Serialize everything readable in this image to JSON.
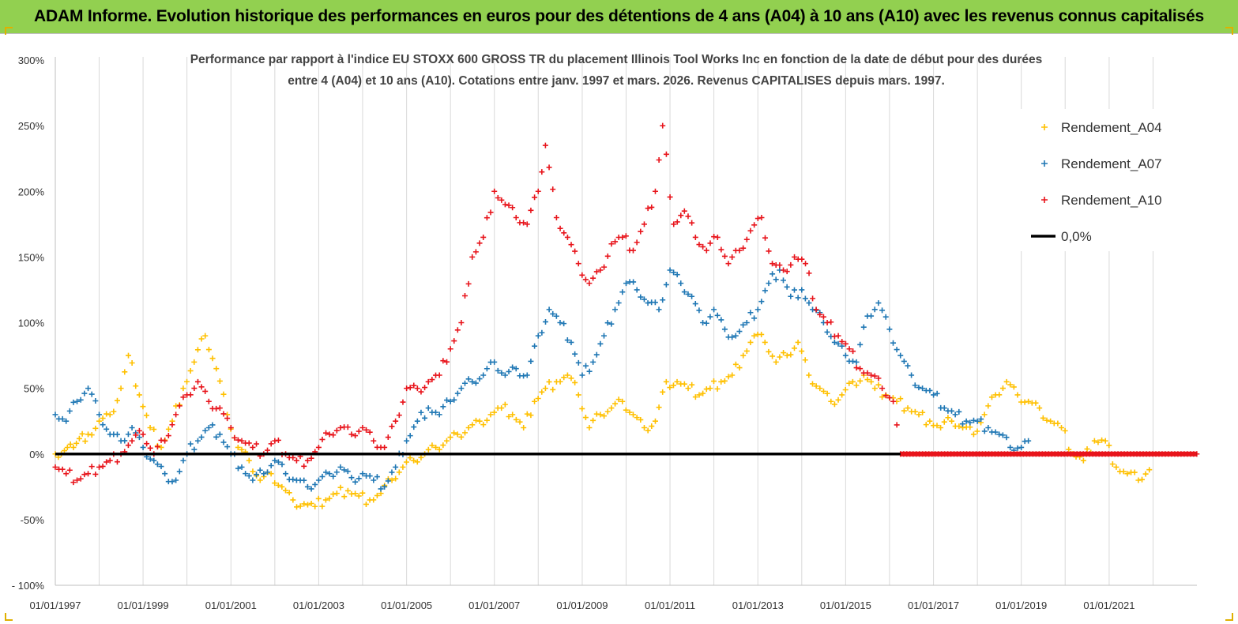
{
  "banner": {
    "title": "ADAM Informe. Evolution historique des performances en euros pour des détentions de 4 ans (A04) à 10 ans (A10) avec les revenus connus capitalisés"
  },
  "chart_data": {
    "type": "scatter",
    "title_lines": [
      "Performance par rapport à l'indice EU STOXX 600 GROSS TR  du placement Illinois Tool Works Inc en fonction de la date de début pour des durées",
      "entre 4 (A04) et 10 ans (A10). Cotations entre janv. 1997 et mars. 2026. Revenus CAPITALISES depuis mars. 1997."
    ],
    "xlabel": "",
    "ylabel": "",
    "x_range": [
      "1997-01-01",
      "2023-01-01"
    ],
    "x_ticks": [
      "01/01/1997",
      "01/01/1999",
      "01/01/2001",
      "01/01/2003",
      "01/01/2005",
      "01/01/2007",
      "01/01/2009",
      "01/01/2011",
      "01/01/2013",
      "01/01/2015",
      "01/01/2017",
      "01/01/2019",
      "01/01/2021"
    ],
    "y_range": [
      -100,
      300
    ],
    "y_ticks": [
      "- 100%",
      "-50%",
      "0%",
      "50%",
      "100%",
      "150%",
      "200%",
      "250%",
      "300%"
    ],
    "grid": "vertical",
    "legend_position": "top-right",
    "series": [
      {
        "name": "Rendement_A04",
        "color": "#ffc000",
        "marker": "plus",
        "points": [
          [
            "1997-01-01",
            0
          ],
          [
            "1997-06-01",
            5
          ],
          [
            "1997-10-01",
            15
          ],
          [
            "1998-01-01",
            25
          ],
          [
            "1998-04-01",
            30
          ],
          [
            "1998-07-01",
            50
          ],
          [
            "1998-09-01",
            75
          ],
          [
            "1998-12-01",
            45
          ],
          [
            "1999-03-01",
            20
          ],
          [
            "1999-06-01",
            5
          ],
          [
            "1999-09-01",
            25
          ],
          [
            "1999-12-01",
            50
          ],
          [
            "2000-03-01",
            70
          ],
          [
            "2000-06-01",
            90
          ],
          [
            "2000-09-01",
            65
          ],
          [
            "2000-12-01",
            30
          ],
          [
            "2001-03-01",
            5
          ],
          [
            "2001-06-01",
            -5
          ],
          [
            "2001-09-01",
            -20
          ],
          [
            "2001-12-01",
            -15
          ],
          [
            "2002-03-01",
            -25
          ],
          [
            "2002-06-01",
            -35
          ],
          [
            "2002-09-01",
            -38
          ],
          [
            "2002-12-01",
            -40
          ],
          [
            "2003-03-01",
            -35
          ],
          [
            "2003-06-01",
            -30
          ],
          [
            "2003-09-01",
            -28
          ],
          [
            "2003-12-01",
            -32
          ],
          [
            "2004-03-01",
            -35
          ],
          [
            "2004-06-01",
            -30
          ],
          [
            "2004-09-01",
            -20
          ],
          [
            "2004-12-01",
            -10
          ],
          [
            "2005-03-01",
            -5
          ],
          [
            "2005-06-01",
            0
          ],
          [
            "2005-09-01",
            5
          ],
          [
            "2005-12-01",
            10
          ],
          [
            "2006-03-01",
            15
          ],
          [
            "2006-06-01",
            20
          ],
          [
            "2006-09-01",
            25
          ],
          [
            "2006-12-01",
            30
          ],
          [
            "2007-03-01",
            35
          ],
          [
            "2007-06-01",
            30
          ],
          [
            "2007-09-01",
            20
          ],
          [
            "2007-12-01",
            40
          ],
          [
            "2008-03-01",
            50
          ],
          [
            "2008-06-01",
            55
          ],
          [
            "2008-09-01",
            60
          ],
          [
            "2008-12-01",
            45
          ],
          [
            "2009-03-01",
            20
          ],
          [
            "2009-06-01",
            30
          ],
          [
            "2009-09-01",
            35
          ],
          [
            "2009-12-01",
            40
          ],
          [
            "2010-03-01",
            30
          ],
          [
            "2010-06-01",
            20
          ],
          [
            "2010-09-01",
            25
          ],
          [
            "2010-12-01",
            55
          ],
          [
            "2011-03-01",
            55
          ],
          [
            "2011-06-01",
            50
          ],
          [
            "2011-09-01",
            45
          ],
          [
            "2011-12-01",
            50
          ],
          [
            "2012-03-01",
            55
          ],
          [
            "2012-06-01",
            60
          ],
          [
            "2012-09-01",
            75
          ],
          [
            "2012-12-01",
            90
          ],
          [
            "2013-03-01",
            85
          ],
          [
            "2013-06-01",
            70
          ],
          [
            "2013-09-01",
            75
          ],
          [
            "2013-12-01",
            85
          ],
          [
            "2014-03-01",
            60
          ],
          [
            "2014-06-01",
            50
          ],
          [
            "2014-09-01",
            40
          ],
          [
            "2014-12-01",
            45
          ],
          [
            "2015-03-01",
            55
          ],
          [
            "2015-06-01",
            60
          ],
          [
            "2015-09-01",
            50
          ],
          [
            "2015-12-01",
            45
          ],
          [
            "2016-03-01",
            40
          ],
          [
            "2016-06-01",
            35
          ],
          [
            "2016-09-01",
            30
          ],
          [
            "2016-12-01",
            25
          ],
          [
            "2017-03-01",
            20
          ],
          [
            "2017-06-01",
            25
          ],
          [
            "2017-09-01",
            20
          ],
          [
            "2017-12-01",
            15
          ],
          [
            "2018-03-01",
            30
          ],
          [
            "2018-06-01",
            45
          ],
          [
            "2018-09-01",
            55
          ],
          [
            "2018-12-01",
            45
          ],
          [
            "2019-03-01",
            40
          ],
          [
            "2019-06-01",
            35
          ],
          [
            "2019-09-01",
            25
          ],
          [
            "2019-12-01",
            20
          ],
          [
            "2020-03-01",
            0
          ],
          [
            "2020-06-01",
            -5
          ],
          [
            "2020-09-01",
            10
          ],
          [
            "2020-12-01",
            10
          ],
          [
            "2021-03-01",
            -10
          ],
          [
            "2021-06-01",
            -15
          ],
          [
            "2021-09-01",
            -20
          ],
          [
            "2021-12-01",
            -12
          ]
        ]
      },
      {
        "name": "Rendement_A07",
        "color": "#1f77b4",
        "marker": "plus",
        "points": [
          [
            "1997-01-01",
            30
          ],
          [
            "1997-04-01",
            25
          ],
          [
            "1997-07-01",
            40
          ],
          [
            "1997-10-01",
            50
          ],
          [
            "1998-01-01",
            30
          ],
          [
            "1998-04-01",
            15
          ],
          [
            "1998-07-01",
            10
          ],
          [
            "1998-10-01",
            20
          ],
          [
            "1999-01-01",
            5
          ],
          [
            "1999-04-01",
            -5
          ],
          [
            "1999-07-01",
            -15
          ],
          [
            "1999-10-01",
            -20
          ],
          [
            "2000-01-01",
            0
          ],
          [
            "2000-04-01",
            10
          ],
          [
            "2000-07-01",
            20
          ],
          [
            "2000-10-01",
            15
          ],
          [
            "2001-01-01",
            0
          ],
          [
            "2001-04-01",
            -10
          ],
          [
            "2001-07-01",
            -20
          ],
          [
            "2001-10-01",
            -15
          ],
          [
            "2002-01-01",
            -5
          ],
          [
            "2002-04-01",
            -15
          ],
          [
            "2002-07-01",
            -20
          ],
          [
            "2002-10-01",
            -25
          ],
          [
            "2003-01-01",
            -20
          ],
          [
            "2003-04-01",
            -15
          ],
          [
            "2003-07-01",
            -10
          ],
          [
            "2003-10-01",
            -18
          ],
          [
            "2004-01-01",
            -15
          ],
          [
            "2004-04-01",
            -20
          ],
          [
            "2004-07-01",
            -25
          ],
          [
            "2004-10-01",
            -10
          ],
          [
            "2005-01-01",
            10
          ],
          [
            "2005-04-01",
            25
          ],
          [
            "2005-07-01",
            35
          ],
          [
            "2005-10-01",
            30
          ],
          [
            "2006-01-01",
            40
          ],
          [
            "2006-04-01",
            50
          ],
          [
            "2006-07-01",
            55
          ],
          [
            "2006-10-01",
            60
          ],
          [
            "2007-01-01",
            70
          ],
          [
            "2007-04-01",
            60
          ],
          [
            "2007-07-01",
            65
          ],
          [
            "2007-10-01",
            60
          ],
          [
            "2008-01-01",
            90
          ],
          [
            "2008-04-01",
            110
          ],
          [
            "2008-07-01",
            100
          ],
          [
            "2008-10-01",
            85
          ],
          [
            "2009-01-01",
            60
          ],
          [
            "2009-04-01",
            70
          ],
          [
            "2009-07-01",
            90
          ],
          [
            "2009-10-01",
            110
          ],
          [
            "2010-01-01",
            130
          ],
          [
            "2010-04-01",
            125
          ],
          [
            "2010-07-01",
            115
          ],
          [
            "2010-10-01",
            110
          ],
          [
            "2011-01-01",
            140
          ],
          [
            "2011-04-01",
            130
          ],
          [
            "2011-07-01",
            120
          ],
          [
            "2011-10-01",
            100
          ],
          [
            "2012-01-01",
            110
          ],
          [
            "2012-04-01",
            95
          ],
          [
            "2012-07-01",
            90
          ],
          [
            "2012-10-01",
            100
          ],
          [
            "2013-01-01",
            110
          ],
          [
            "2013-04-01",
            130
          ],
          [
            "2013-07-01",
            140
          ],
          [
            "2013-10-01",
            120
          ],
          [
            "2014-01-01",
            125
          ],
          [
            "2014-04-01",
            110
          ],
          [
            "2014-07-01",
            100
          ],
          [
            "2014-10-01",
            85
          ],
          [
            "2015-01-01",
            75
          ],
          [
            "2015-04-01",
            70
          ],
          [
            "2015-07-01",
            105
          ],
          [
            "2015-10-01",
            115
          ],
          [
            "2016-01-01",
            95
          ],
          [
            "2016-04-01",
            75
          ],
          [
            "2016-07-01",
            60
          ],
          [
            "2016-10-01",
            50
          ],
          [
            "2017-01-01",
            45
          ],
          [
            "2017-04-01",
            35
          ],
          [
            "2017-07-01",
            30
          ],
          [
            "2017-10-01",
            25
          ],
          [
            "2018-01-01",
            25
          ],
          [
            "2018-04-01",
            20
          ],
          [
            "2018-07-01",
            15
          ],
          [
            "2018-10-01",
            5
          ],
          [
            "2019-01-01",
            5
          ],
          [
            "2019-03-01",
            10
          ]
        ]
      },
      {
        "name": "Rendement_A10",
        "color": "#e8141b",
        "marker": "plus",
        "points": [
          [
            "1997-01-01",
            -10
          ],
          [
            "1997-04-01",
            -15
          ],
          [
            "1997-07-01",
            -20
          ],
          [
            "1997-10-01",
            -15
          ],
          [
            "1998-01-01",
            -10
          ],
          [
            "1998-04-01",
            -5
          ],
          [
            "1998-07-01",
            0
          ],
          [
            "1998-10-01",
            10
          ],
          [
            "1999-01-01",
            15
          ],
          [
            "1999-04-01",
            0
          ],
          [
            "1999-07-01",
            10
          ],
          [
            "1999-10-01",
            30
          ],
          [
            "2000-01-01",
            45
          ],
          [
            "2000-04-01",
            55
          ],
          [
            "2000-07-01",
            40
          ],
          [
            "2000-10-01",
            35
          ],
          [
            "2001-01-01",
            20
          ],
          [
            "2001-04-01",
            10
          ],
          [
            "2001-07-01",
            5
          ],
          [
            "2001-10-01",
            0
          ],
          [
            "2002-01-01",
            10
          ],
          [
            "2002-04-01",
            0
          ],
          [
            "2002-07-01",
            -5
          ],
          [
            "2002-10-01",
            -5
          ],
          [
            "2003-01-01",
            5
          ],
          [
            "2003-04-01",
            15
          ],
          [
            "2003-07-01",
            20
          ],
          [
            "2003-10-01",
            15
          ],
          [
            "2004-01-01",
            20
          ],
          [
            "2004-04-01",
            10
          ],
          [
            "2004-07-01",
            5
          ],
          [
            "2004-10-01",
            25
          ],
          [
            "2005-01-01",
            50
          ],
          [
            "2005-04-01",
            50
          ],
          [
            "2005-07-01",
            55
          ],
          [
            "2005-10-01",
            60
          ],
          [
            "2006-01-01",
            80
          ],
          [
            "2006-04-01",
            100
          ],
          [
            "2006-07-01",
            150
          ],
          [
            "2006-10-01",
            165
          ],
          [
            "2007-01-01",
            200
          ],
          [
            "2007-04-01",
            190
          ],
          [
            "2007-07-01",
            180
          ],
          [
            "2007-10-01",
            175
          ],
          [
            "2008-01-01",
            200
          ],
          [
            "2008-03-01",
            235
          ],
          [
            "2008-06-01",
            180
          ],
          [
            "2008-09-01",
            165
          ],
          [
            "2008-12-01",
            145
          ],
          [
            "2009-03-01",
            130
          ],
          [
            "2009-06-01",
            140
          ],
          [
            "2009-09-01",
            160
          ],
          [
            "2009-12-01",
            165
          ],
          [
            "2010-03-01",
            155
          ],
          [
            "2010-06-01",
            175
          ],
          [
            "2010-09-01",
            200
          ],
          [
            "2010-11-01",
            250
          ],
          [
            "2011-02-01",
            175
          ],
          [
            "2011-05-01",
            185
          ],
          [
            "2011-08-01",
            165
          ],
          [
            "2011-11-01",
            155
          ],
          [
            "2012-02-01",
            165
          ],
          [
            "2012-05-01",
            145
          ],
          [
            "2012-08-01",
            155
          ],
          [
            "2012-11-01",
            170
          ],
          [
            "2013-02-01",
            180
          ],
          [
            "2013-05-01",
            145
          ],
          [
            "2013-08-01",
            140
          ],
          [
            "2013-11-01",
            150
          ],
          [
            "2014-02-01",
            145
          ],
          [
            "2014-05-01",
            110
          ],
          [
            "2014-08-01",
            100
          ],
          [
            "2014-11-01",
            90
          ],
          [
            "2015-02-01",
            80
          ],
          [
            "2015-05-01",
            65
          ],
          [
            "2015-08-01",
            60
          ],
          [
            "2015-11-01",
            50
          ],
          [
            "2016-02-01",
            40
          ],
          [
            "2016-04-01",
            0
          ],
          [
            "2022-12-31",
            0
          ]
        ]
      },
      {
        "name": "0,0%",
        "color": "#000000",
        "marker": "line",
        "points": [
          [
            "1997-01-01",
            0
          ],
          [
            "2022-12-31",
            0
          ]
        ]
      }
    ]
  }
}
